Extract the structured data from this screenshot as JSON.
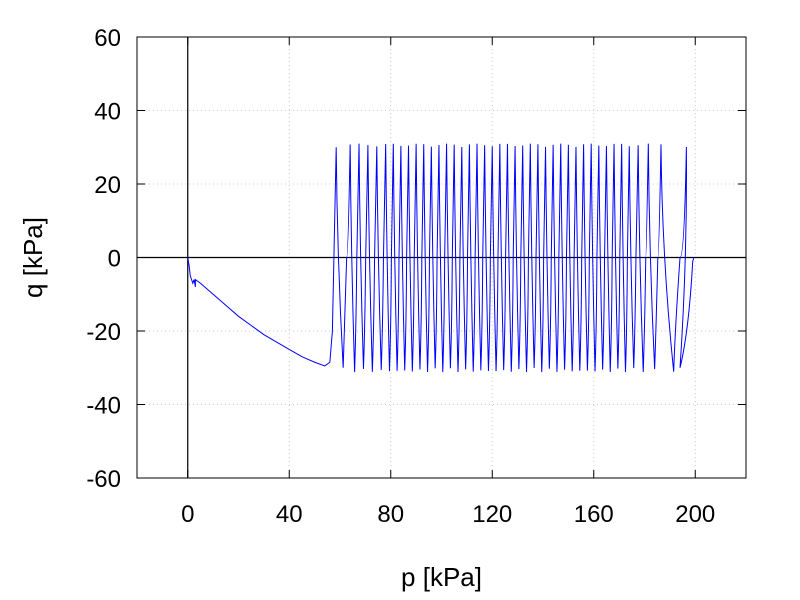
{
  "chart_data": {
    "type": "line",
    "xlabel": "p [kPa]",
    "ylabel": "q [kPa]",
    "xlim": [
      -20,
      220
    ],
    "ylim": [
      -60,
      60
    ],
    "x_ticks": [
      0,
      40,
      80,
      120,
      160,
      200
    ],
    "y_ticks": [
      -60,
      -40,
      -20,
      0,
      20,
      40,
      60
    ],
    "x_tick_labels": [
      "0",
      "40",
      "80",
      "120",
      "160",
      "200"
    ],
    "y_tick_labels": [
      "-60",
      "-40",
      "-20",
      "0",
      "20",
      "40",
      "60"
    ],
    "grid": true,
    "reference_lines": {
      "x": 0,
      "y": 0
    },
    "colors": {
      "series": "#0000ff",
      "grid": "#cccccc",
      "axes": "#000000"
    },
    "series": [
      {
        "description_points": "initial monotonic loading path followed by cyclic oscillation",
        "initial_path": [
          [
            0,
            0
          ],
          [
            0.5,
            -2
          ],
          [
            1,
            -5
          ],
          [
            2,
            -7
          ],
          [
            2.5,
            -6
          ],
          [
            3,
            -8
          ],
          [
            3,
            -6
          ],
          [
            5,
            -7
          ],
          [
            10,
            -10
          ],
          [
            15,
            -13
          ],
          [
            20,
            -16
          ],
          [
            25,
            -18.5
          ],
          [
            30,
            -21
          ],
          [
            35,
            -23
          ],
          [
            40,
            -25
          ],
          [
            45,
            -27
          ],
          [
            50,
            -28.5
          ],
          [
            54,
            -29.5
          ],
          [
            56,
            -28.5
          ],
          [
            57,
            -20
          ]
        ],
        "oscillation_peaks_p": [
          58.5,
          64,
          67.5,
          71,
          74.5,
          78,
          81,
          84,
          87,
          90,
          93,
          96,
          99,
          102,
          105,
          108,
          111,
          114,
          117,
          120,
          123,
          126,
          129,
          132,
          135,
          138,
          141,
          144,
          147,
          150,
          153,
          156,
          159,
          162,
          165,
          168,
          171,
          174,
          177.5,
          181.5,
          186.5,
          196.5
        ],
        "oscillation_amplitude_q": 30,
        "end_point": [
          199.5,
          0
        ]
      }
    ]
  }
}
